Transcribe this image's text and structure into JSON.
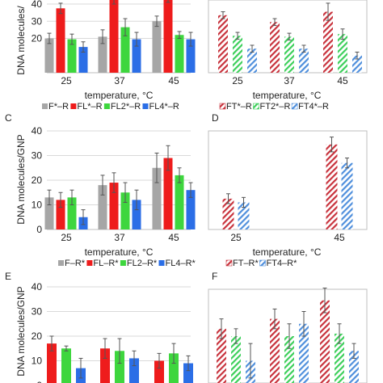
{
  "colors": {
    "gray": "#a6a6a6",
    "red": "#ee1c1c",
    "green": "#3ed63e",
    "blue": "#2b6ee6",
    "hatch_red": "#c8323c",
    "hatch_green": "#3ccf5a",
    "hatch_blue": "#4f8fdc",
    "grid": "#d9d9d9",
    "error": "#555555"
  },
  "chart_data": [
    {
      "panel": "A",
      "type": "bar",
      "panel_label": "",
      "categories": [
        "25",
        "37",
        "45"
      ],
      "xlabel": "temperature, °C",
      "ylabel": "DNA molecules/",
      "ylim": [
        0,
        40
      ],
      "yticks": [
        "20",
        "30",
        "40"
      ],
      "grid": true,
      "legend": "bottom",
      "series": [
        {
          "name": "F*–R",
          "color": "gray",
          "hatch": false,
          "values": [
            20,
            21,
            30
          ],
          "errors": [
            3,
            4,
            3
          ]
        },
        {
          "name": "FL*–R",
          "color": "red",
          "hatch": false,
          "values": [
            37.5,
            43,
            44
          ],
          "errors": [
            3,
            3,
            3
          ]
        },
        {
          "name": "FL2*–R",
          "color": "green",
          "hatch": false,
          "values": [
            19.5,
            26.5,
            22
          ],
          "errors": [
            3,
            5,
            2
          ]
        },
        {
          "name": "FL4*–R",
          "color": "blue",
          "hatch": false,
          "values": [
            15,
            19.5,
            19.5
          ],
          "errors": [
            3,
            4,
            4
          ]
        }
      ]
    },
    {
      "panel": "B",
      "type": "bar",
      "panel_label": "",
      "categories": [
        "25",
        "37",
        "45"
      ],
      "xlabel": "temperature, °C",
      "ylabel": "",
      "ylim": [
        0,
        40
      ],
      "yticks": [],
      "grid": false,
      "legend": "bottom",
      "series": [
        {
          "name": "FT*–R",
          "color": "hatch_red",
          "hatch": true,
          "values": [
            33.5,
            29.5,
            35.5
          ],
          "errors": [
            2,
            2,
            5
          ]
        },
        {
          "name": "FT2*–R",
          "color": "hatch_green",
          "hatch": true,
          "values": [
            21.5,
            21,
            22.5
          ],
          "errors": [
            2,
            2,
            3
          ]
        },
        {
          "name": "FT4*–R",
          "color": "hatch_blue",
          "hatch": true,
          "values": [
            14,
            14,
            10
          ],
          "errors": [
            2,
            2,
            2
          ]
        }
      ]
    },
    {
      "panel": "C",
      "type": "bar",
      "panel_label": "C",
      "categories": [
        "25",
        "37",
        "45"
      ],
      "xlabel": "temperature, °C",
      "ylabel": "DNA molecules/GNP",
      "ylim": [
        0,
        40
      ],
      "yticks": [
        "0",
        "10",
        "20",
        "30",
        "40"
      ],
      "grid": true,
      "legend": "bottom",
      "series": [
        {
          "name": "F–R*",
          "color": "gray",
          "hatch": false,
          "values": [
            13,
            18,
            25
          ],
          "errors": [
            3,
            4,
            6
          ]
        },
        {
          "name": "FL–R*",
          "color": "red",
          "hatch": false,
          "values": [
            12,
            19,
            29
          ],
          "errors": [
            3,
            4,
            5
          ]
        },
        {
          "name": "FL2–R*",
          "color": "green",
          "hatch": false,
          "values": [
            13,
            15,
            22
          ],
          "errors": [
            3,
            4,
            3
          ]
        },
        {
          "name": "FL4–R*",
          "color": "blue",
          "hatch": false,
          "values": [
            5,
            12,
            16
          ],
          "errors": [
            3,
            4,
            3
          ]
        }
      ]
    },
    {
      "panel": "D",
      "type": "bar",
      "panel_label": "D",
      "categories": [
        "25",
        "45"
      ],
      "xlabel": "temperature, °C",
      "ylabel": "",
      "ylim": [
        0,
        40
      ],
      "yticks": [],
      "grid": false,
      "legend": "bottom",
      "series": [
        {
          "name": "FT–R*",
          "color": "hatch_red",
          "hatch": true,
          "values": [
            12.5,
            34.5
          ],
          "errors": [
            2,
            3
          ]
        },
        {
          "name": "FT4–R*",
          "color": "hatch_blue",
          "hatch": true,
          "values": [
            11,
            27
          ],
          "errors": [
            2,
            2
          ]
        }
      ]
    },
    {
      "panel": "E",
      "type": "bar",
      "panel_label": "E",
      "categories": [
        "25",
        "37",
        "45"
      ],
      "xlabel": "",
      "ylabel": "DNA molecules/GNP",
      "ylim": [
        0,
        40
      ],
      "yticks": [
        "0",
        "10",
        "20",
        "30",
        "40"
      ],
      "grid": true,
      "legend": "",
      "series": [
        {
          "name": "",
          "color": "red",
          "hatch": false,
          "values": [
            17,
            15,
            10
          ],
          "errors": [
            3,
            4,
            3
          ]
        },
        {
          "name": "",
          "color": "green",
          "hatch": false,
          "values": [
            15,
            14,
            13
          ],
          "errors": [
            1,
            5,
            4
          ]
        },
        {
          "name": "",
          "color": "blue",
          "hatch": false,
          "values": [
            7,
            11,
            9
          ],
          "errors": [
            4,
            3,
            3
          ]
        }
      ]
    },
    {
      "panel": "F",
      "type": "bar",
      "panel_label": "F",
      "categories": [
        "25",
        "37",
        "45"
      ],
      "xlabel": "",
      "ylabel": "",
      "ylim": [
        0,
        40
      ],
      "yticks": [],
      "grid": false,
      "legend": "",
      "series": [
        {
          "name": "",
          "color": "hatch_red",
          "hatch": true,
          "values": [
            23,
            27,
            34.5
          ],
          "errors": [
            4,
            4,
            5
          ]
        },
        {
          "name": "",
          "color": "hatch_green",
          "hatch": true,
          "values": [
            20,
            20,
            21
          ],
          "errors": [
            3,
            5,
            4
          ]
        },
        {
          "name": "",
          "color": "hatch_blue",
          "hatch": true,
          "values": [
            10,
            25,
            14
          ],
          "errors": [
            7,
            5,
            3
          ]
        }
      ]
    }
  ]
}
